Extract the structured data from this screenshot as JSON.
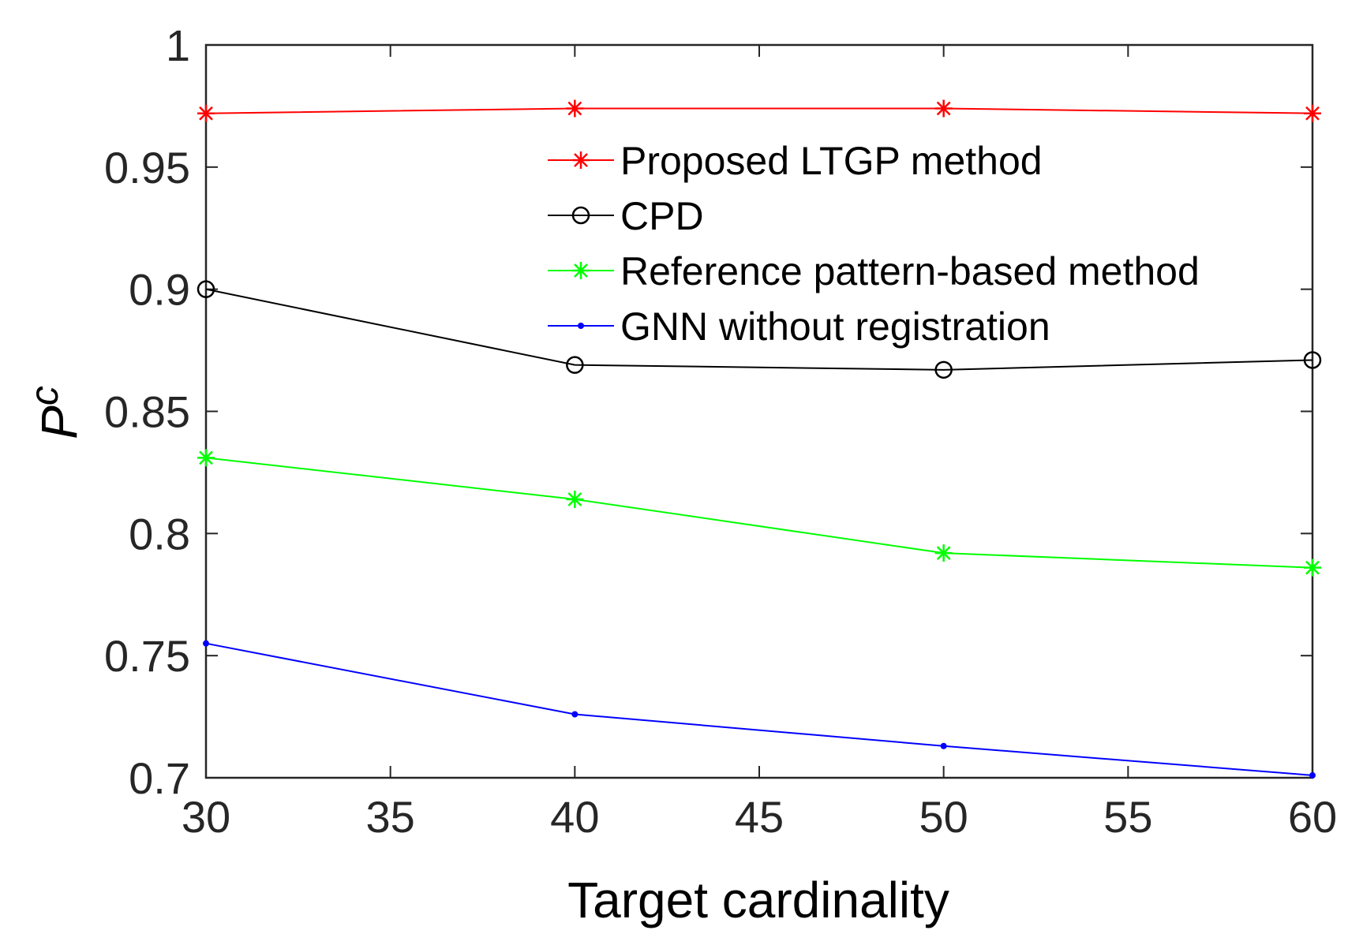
{
  "chart_data": {
    "type": "line",
    "title": "",
    "xlabel": "Target cardinality",
    "ylabel_main": "P",
    "ylabel_sub": "c",
    "x": [
      30,
      40,
      50,
      60
    ],
    "xlim": [
      30,
      60
    ],
    "ylim": [
      0.7,
      1.0
    ],
    "xticks": [
      30,
      35,
      40,
      45,
      50,
      55,
      60
    ],
    "yticks": [
      0.7,
      0.75,
      0.8,
      0.85,
      0.9,
      0.95,
      1.0
    ],
    "xtick_labels": [
      "30",
      "35",
      "40",
      "45",
      "50",
      "55",
      "60"
    ],
    "ytick_labels": [
      "0.7",
      "0.75",
      "0.8",
      "0.85",
      "0.9",
      "0.95",
      "1"
    ],
    "grid": false,
    "legend_position": "upper-right-inside",
    "series": [
      {
        "name": "Proposed LTGP method",
        "color": "#ff0000",
        "marker": "asterisk",
        "values": [
          0.972,
          0.974,
          0.974,
          0.972
        ]
      },
      {
        "name": "CPD",
        "color": "#000000",
        "marker": "circle",
        "values": [
          0.9,
          0.869,
          0.867,
          0.871
        ]
      },
      {
        "name": "Reference pattern-based method",
        "color": "#00ff00",
        "marker": "asterisk",
        "values": [
          0.831,
          0.814,
          0.792,
          0.786
        ]
      },
      {
        "name": "GNN without registration",
        "color": "#0000ff",
        "marker": "dot",
        "values": [
          0.755,
          0.726,
          0.713,
          0.701
        ]
      }
    ]
  }
}
